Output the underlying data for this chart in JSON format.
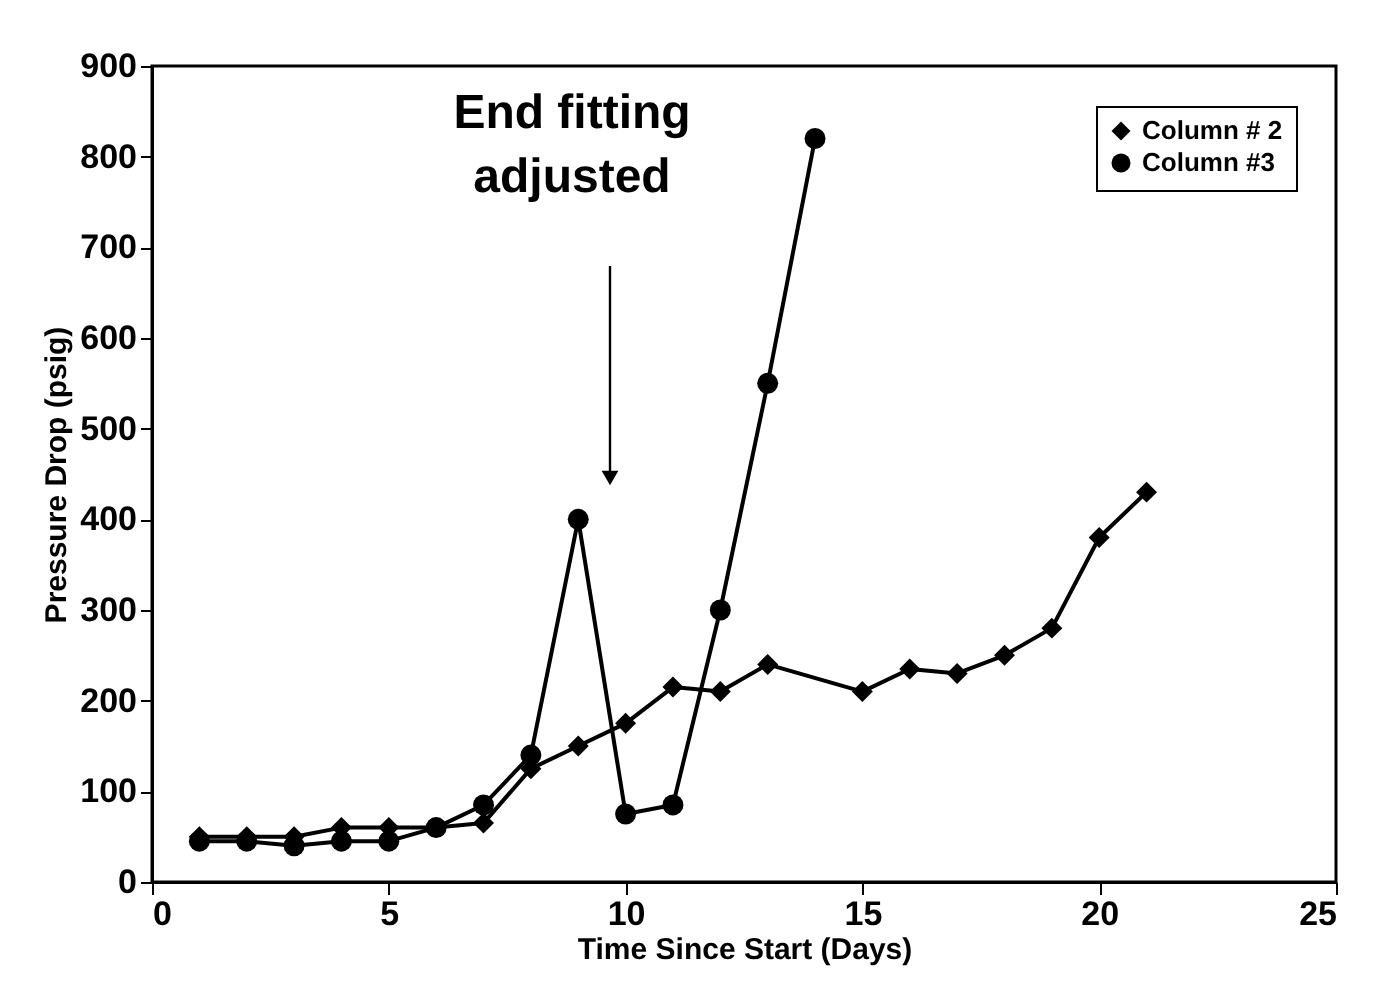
{
  "chart_data": {
    "type": "line",
    "xlabel": "Time Since Start (Days)",
    "ylabel": "Pressure Drop (psig)",
    "xlim": [
      0,
      25
    ],
    "xticks": [
      0,
      5,
      10,
      15,
      20,
      25
    ],
    "ylim": [
      0,
      900
    ],
    "yticks": [
      0,
      100,
      200,
      300,
      400,
      500,
      600,
      700,
      800,
      900
    ],
    "grid": false,
    "legend": "top right",
    "line_style": "solid",
    "annotations": [
      "End fitting adjusted"
    ],
    "series": [
      {
        "name": "Column # 2",
        "color": "#000000",
        "marker": "diamond",
        "x": [
          1,
          2,
          3,
          4,
          5,
          6,
          7,
          8,
          9,
          10,
          11,
          12,
          13,
          15,
          16,
          17,
          18,
          19,
          20,
          21
        ],
        "values": [
          50,
          50,
          50,
          60,
          60,
          60,
          65,
          125,
          150,
          175,
          215,
          210,
          240,
          210,
          235,
          230,
          250,
          280,
          380,
          430
        ]
      },
      {
        "name": "Column #3",
        "color": "#000000",
        "marker": "circle",
        "x": [
          1,
          2,
          3,
          4,
          5,
          6,
          7,
          8,
          9,
          10,
          11,
          12,
          13,
          14
        ],
        "values": [
          45,
          45,
          40,
          45,
          45,
          60,
          85,
          140,
          400,
          75,
          85,
          300,
          550,
          820
        ]
      }
    ]
  }
}
